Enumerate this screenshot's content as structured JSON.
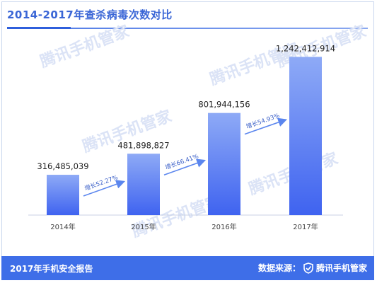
{
  "title": "2014-2017年查杀病毒次数对比",
  "footer": {
    "left": "2017年手机安全报告",
    "source_label": "数据来源：",
    "source_brand": "腾讯手机管家"
  },
  "watermark": "腾讯手机管家",
  "colors": {
    "accent": "#3e6ee8",
    "bar_top": "#8eaaf6",
    "bar_bottom": "#3f63f0",
    "arrow": "#5b86ee",
    "text": "#222222",
    "watermark": "#dbe3f6"
  },
  "chart_data": {
    "type": "bar",
    "title": "2014-2017年查杀病毒次数对比",
    "categories": [
      "2014年",
      "2015年",
      "2016年",
      "2017年"
    ],
    "values": [
      316485039,
      481898827,
      801944156,
      1242412914
    ],
    "value_labels": [
      "316,485,039",
      "481,898,827",
      "801,944,156",
      "1,242,412,914"
    ],
    "ylim": [
      0,
      1300000000
    ],
    "grid": false,
    "growth_annotations": [
      {
        "from": "2014年",
        "to": "2015年",
        "label": "增长52.27%"
      },
      {
        "from": "2015年",
        "to": "2016年",
        "label": "增长66.41%"
      },
      {
        "from": "2016年",
        "to": "2017年",
        "label": "增长54.93%"
      }
    ]
  }
}
